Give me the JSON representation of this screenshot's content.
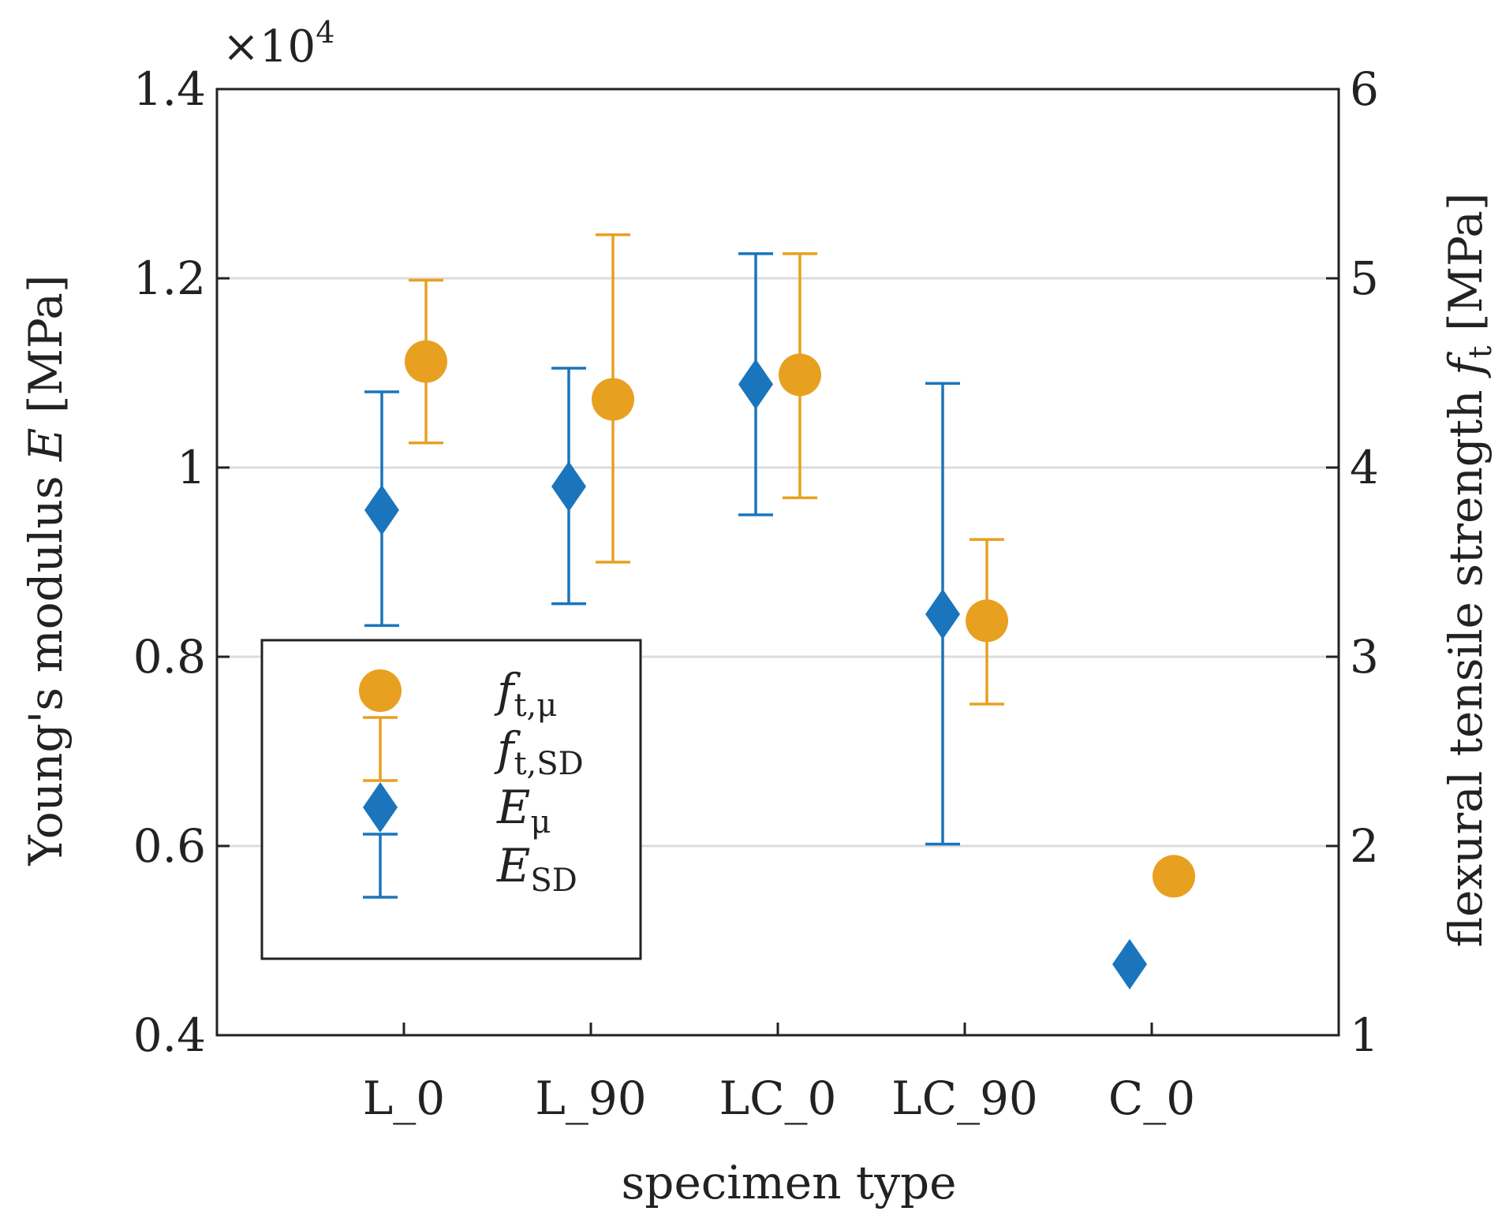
{
  "chart_data": {
    "type": "scatter",
    "xlabel": "specimen type",
    "ylabel_left": {
      "text": "Young's modulus ",
      "symbol": "E",
      "unit": " [MPa]"
    },
    "ylabel_right": {
      "text": "flexural tensile strength ",
      "symbol": "f",
      "sub": "t",
      "unit": " [MPa]"
    },
    "exponent_label": {
      "base": "×10",
      "power": "4"
    },
    "categories": [
      "L_0",
      "L_90",
      "LC_0",
      "LC_90",
      "C_0"
    ],
    "left_axis": {
      "ylim": [
        4000,
        14000
      ],
      "ticks": [
        4000,
        6000,
        8000,
        10000,
        12000,
        14000
      ],
      "tick_labels": [
        "0.4",
        "0.6",
        "0.8",
        "1",
        "1.2",
        "1.4"
      ]
    },
    "right_axis": {
      "ylim": [
        1,
        6
      ],
      "ticks": [
        1,
        2,
        3,
        4,
        5,
        6
      ],
      "tick_labels": [
        "1",
        "2",
        "3",
        "4",
        "5",
        "6"
      ]
    },
    "grid": "horizontal",
    "legend_position": "bottom-left",
    "series": [
      {
        "axis": "right",
        "color": "#E8A020",
        "marker": "circle",
        "mean": [
          4.56,
          4.36,
          4.49,
          3.19,
          1.84
        ],
        "lower": [
          4.13,
          3.5,
          3.84,
          2.75,
          null
        ],
        "upper": [
          4.99,
          5.23,
          5.13,
          3.62,
          null
        ]
      },
      {
        "axis": "left",
        "color": "#1A75BC",
        "marker": "diamond",
        "mean": [
          9550,
          9800,
          10880,
          8450,
          4750
        ],
        "lower": [
          8330,
          8560,
          9500,
          6020,
          null
        ],
        "upper": [
          10800,
          11050,
          12260,
          10890,
          null
        ]
      }
    ],
    "legend": [
      {
        "kind": "marker-circle",
        "base": "f",
        "sub": "t,μ",
        "color": "#E8A020"
      },
      {
        "kind": "errorbar",
        "base": "f",
        "sub": "t,SD",
        "color": "#E8A020"
      },
      {
        "kind": "marker-diamond",
        "base": "E",
        "sub": "μ",
        "color": "#1A75BC"
      },
      {
        "kind": "errorbar",
        "base": "E",
        "sub": "SD",
        "color": "#1A75BC"
      }
    ]
  }
}
